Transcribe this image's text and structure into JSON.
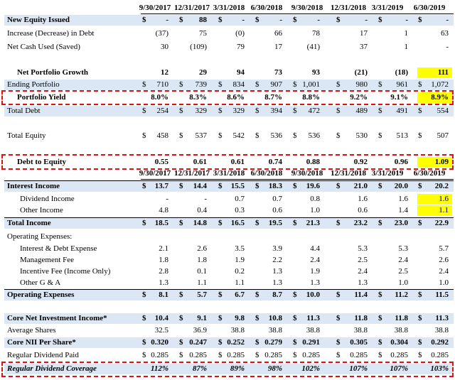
{
  "colors": {
    "shade": "#dbe7f4",
    "yellow": "#ffff00",
    "green": "#22c55e",
    "dash": "#e01010"
  },
  "top": {
    "dates": [
      "9/30/2017",
      "12/31/2017",
      "3/31/2018",
      "6/30/2018",
      "9/30/2018",
      "12/31/2018",
      "3/31/2019",
      "6/30/2019"
    ],
    "rows": [
      {
        "label": "New Equity Issued",
        "style": "bold shade",
        "dollar": true,
        "values": [
          "-",
          "88",
          "-",
          "-",
          "-",
          "-",
          "-",
          "-"
        ]
      },
      {
        "label": "Increase (Decrease) in Debt",
        "style": "",
        "dollar": false,
        "values": [
          "(37)",
          "75",
          "(0)",
          "66",
          "78",
          "17",
          "1",
          "63"
        ]
      },
      {
        "label": "Net Cash Used (Saved)",
        "style": "",
        "dollar": false,
        "values": [
          "30",
          "(109)",
          "79",
          "17",
          "(41)",
          "37",
          "1",
          "-"
        ]
      },
      {
        "label": "",
        "style": "spacer",
        "dollar": false,
        "values": [
          "",
          "",
          "",
          "",
          "",
          "",
          "",
          ""
        ]
      },
      {
        "label": "Net Portfolio Growth",
        "style": "bold indent",
        "dollar": false,
        "values": [
          "12",
          "29",
          "94",
          "73",
          "93",
          "(21)",
          "(18)",
          "111"
        ]
      },
      {
        "label": "Ending Portfolio",
        "style": "shade",
        "dollar": true,
        "values": [
          "710",
          "739",
          "834",
          "907",
          "1,001",
          "980",
          "961",
          "1,072"
        ]
      },
      {
        "label": "Portfolio Yield",
        "style": "bold indent",
        "dollar": false,
        "values": [
          "8.0%",
          "8.3%",
          "8.6%",
          "8.7%",
          "8.8%",
          "9.2%",
          "9.1%",
          "8.9%"
        ]
      },
      {
        "label": "Total Debt",
        "style": "shade",
        "dollar": true,
        "values": [
          "254",
          "329",
          "329",
          "394",
          "472",
          "489",
          "491",
          "554"
        ]
      },
      {
        "label": "",
        "style": "spacer",
        "dollar": false,
        "values": [
          "",
          "",
          "",
          "",
          "",
          "",
          "",
          ""
        ]
      },
      {
        "label": "Total Equity",
        "style": "",
        "dollar": true,
        "values": [
          "458",
          "537",
          "542",
          "536",
          "536",
          "530",
          "513",
          "507"
        ]
      },
      {
        "label": "",
        "style": "spacer",
        "dollar": false,
        "values": [
          "",
          "",
          "",
          "",
          "",
          "",
          "",
          ""
        ]
      },
      {
        "label": "Debt to Equity",
        "style": "bold indent",
        "dollar": false,
        "values": [
          "0.55",
          "0.61",
          "0.61",
          "0.74",
          "0.88",
          "0.92",
          "0.96",
          "1.09"
        ]
      }
    ]
  },
  "bottom": {
    "dates": [
      "9/30/2017",
      "12/31/2017",
      "3/31/2018",
      "6/30/2018",
      "9/30/2018",
      "12/31/2018",
      "3/31/2019",
      "6/30/2019"
    ],
    "rows": [
      {
        "label": "Interest Income",
        "style": "bold shade",
        "dollar": true,
        "values": [
          "13.7",
          "14.4",
          "15.5",
          "18.3",
          "19.6",
          "21.0",
          "20.0",
          "20.2"
        ]
      },
      {
        "label": "Dividend Income",
        "style": "indent2",
        "dollar": false,
        "values": [
          "-",
          "-",
          "0.7",
          "0.7",
          "0.8",
          "1.6",
          "1.6",
          "1.6"
        ]
      },
      {
        "label": "Other Income",
        "style": "indent2",
        "dollar": false,
        "values": [
          "4.8",
          "0.4",
          "0.3",
          "0.6",
          "1.0",
          "0.6",
          "1.4",
          "1.1"
        ]
      },
      {
        "label": "Total Income",
        "style": "bold shade",
        "dollar": true,
        "values": [
          "18.5",
          "14.8",
          "16.5",
          "19.5",
          "21.3",
          "23.2",
          "23.0",
          "22.9"
        ]
      },
      {
        "label": "Operating Expenses:",
        "style": "",
        "dollar": false,
        "values": [
          "",
          "",
          "",
          "",
          "",
          "",
          "",
          ""
        ]
      },
      {
        "label": "Interest & Debt Expense",
        "style": "indent2",
        "dollar": false,
        "values": [
          "2.1",
          "2.6",
          "3.5",
          "3.9",
          "4.4",
          "5.3",
          "5.3",
          "5.7"
        ]
      },
      {
        "label": "Management Fee",
        "style": "indent2",
        "dollar": false,
        "values": [
          "1.8",
          "1.8",
          "1.9",
          "2.2",
          "2.4",
          "2.5",
          "2.4",
          "2.6"
        ]
      },
      {
        "label": "Incentive Fee (Income Only)",
        "style": "indent2",
        "dollar": false,
        "values": [
          "2.8",
          "0.1",
          "0.2",
          "1.3",
          "1.9",
          "2.4",
          "2.5",
          "2.4"
        ]
      },
      {
        "label": "Other G & A",
        "style": "indent2",
        "dollar": false,
        "values": [
          "1.3",
          "1.1",
          "1.1",
          "1.3",
          "1.3",
          "1.3",
          "1.0",
          "1.0"
        ]
      },
      {
        "label": "Operating Expenses",
        "style": "bold shade",
        "dollar": true,
        "values": [
          "8.1",
          "5.7",
          "6.7",
          "8.7",
          "10.0",
          "11.4",
          "11.2",
          "11.5"
        ]
      },
      {
        "label": "",
        "style": "spacer",
        "dollar": false,
        "values": [
          "",
          "",
          "",
          "",
          "",
          "",
          "",
          ""
        ]
      },
      {
        "label": "Core Net Investment Income*",
        "style": "bold shade",
        "dollar": true,
        "values": [
          "10.4",
          "9.1",
          "9.8",
          "10.8",
          "11.3",
          "11.8",
          "11.8",
          "11.3"
        ]
      },
      {
        "label": "Average Shares",
        "style": "",
        "dollar": false,
        "values": [
          "32.5",
          "36.9",
          "38.8",
          "38.8",
          "38.8",
          "38.8",
          "38.8",
          "38.8"
        ]
      },
      {
        "label": "Core NII Per Share*",
        "style": "bold shade",
        "dollar": true,
        "values": [
          "0.320",
          "0.247",
          "0.252",
          "0.279",
          "0.291",
          "0.305",
          "0.304",
          "0.292"
        ]
      },
      {
        "label": "Regular Dividend Paid",
        "style": "",
        "dollar": true,
        "values": [
          "0.285",
          "0.285",
          "0.285",
          "0.285",
          "0.285",
          "0.285",
          "0.285",
          "0.285"
        ]
      },
      {
        "label": "Regular Dividend Coverage",
        "style": "bold italic shade",
        "dollar": false,
        "values": [
          "112%",
          "87%",
          "89%",
          "98%",
          "102%",
          "107%",
          "107%",
          "103%"
        ]
      }
    ]
  }
}
